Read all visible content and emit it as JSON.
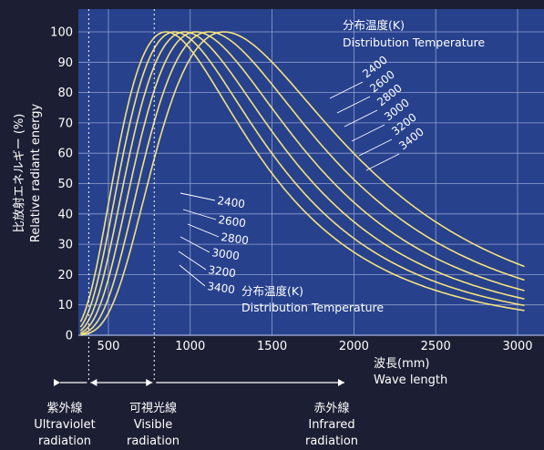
{
  "chart_data": {
    "type": "line",
    "xlabel": "Wave length",
    "xlabel_jp": "波長(mm)",
    "ylabel": "Relative radiant energy",
    "ylabel_jp": "比放射エネルギー (%)",
    "xlim": [
      0,
      3200
    ],
    "ylim": [
      0,
      105
    ],
    "x_ticks": [
      500,
      1000,
      1500,
      2000,
      2500,
      3000
    ],
    "y_ticks": [
      0,
      10,
      20,
      30,
      40,
      50,
      60,
      70,
      80,
      90,
      100
    ],
    "grid": true,
    "legend_title_jp": "分布温度(K)",
    "legend_title_en": "Distribution Temperature",
    "series": [
      {
        "name": "2400",
        "peak_x": 1207
      },
      {
        "name": "2600",
        "peak_x": 1115
      },
      {
        "name": "2800",
        "peak_x": 1035
      },
      {
        "name": "3000",
        "peak_x": 966
      },
      {
        "name": "3200",
        "peak_x": 905
      },
      {
        "name": "3400",
        "peak_x": 852
      }
    ],
    "boundaries_x": [
      380,
      780
    ],
    "regions": [
      {
        "jp": "紫外線",
        "en": "Ultraviolet",
        "en2": "radiation"
      },
      {
        "jp": "可視光線",
        "en": "Visible",
        "en2": "radiation"
      },
      {
        "jp": "赤外線",
        "en": "Infrared",
        "en2": "radiation"
      }
    ],
    "line_color": "#f4e27e",
    "plot_background": "#27418d",
    "grid_color": "#8fa0cf"
  }
}
